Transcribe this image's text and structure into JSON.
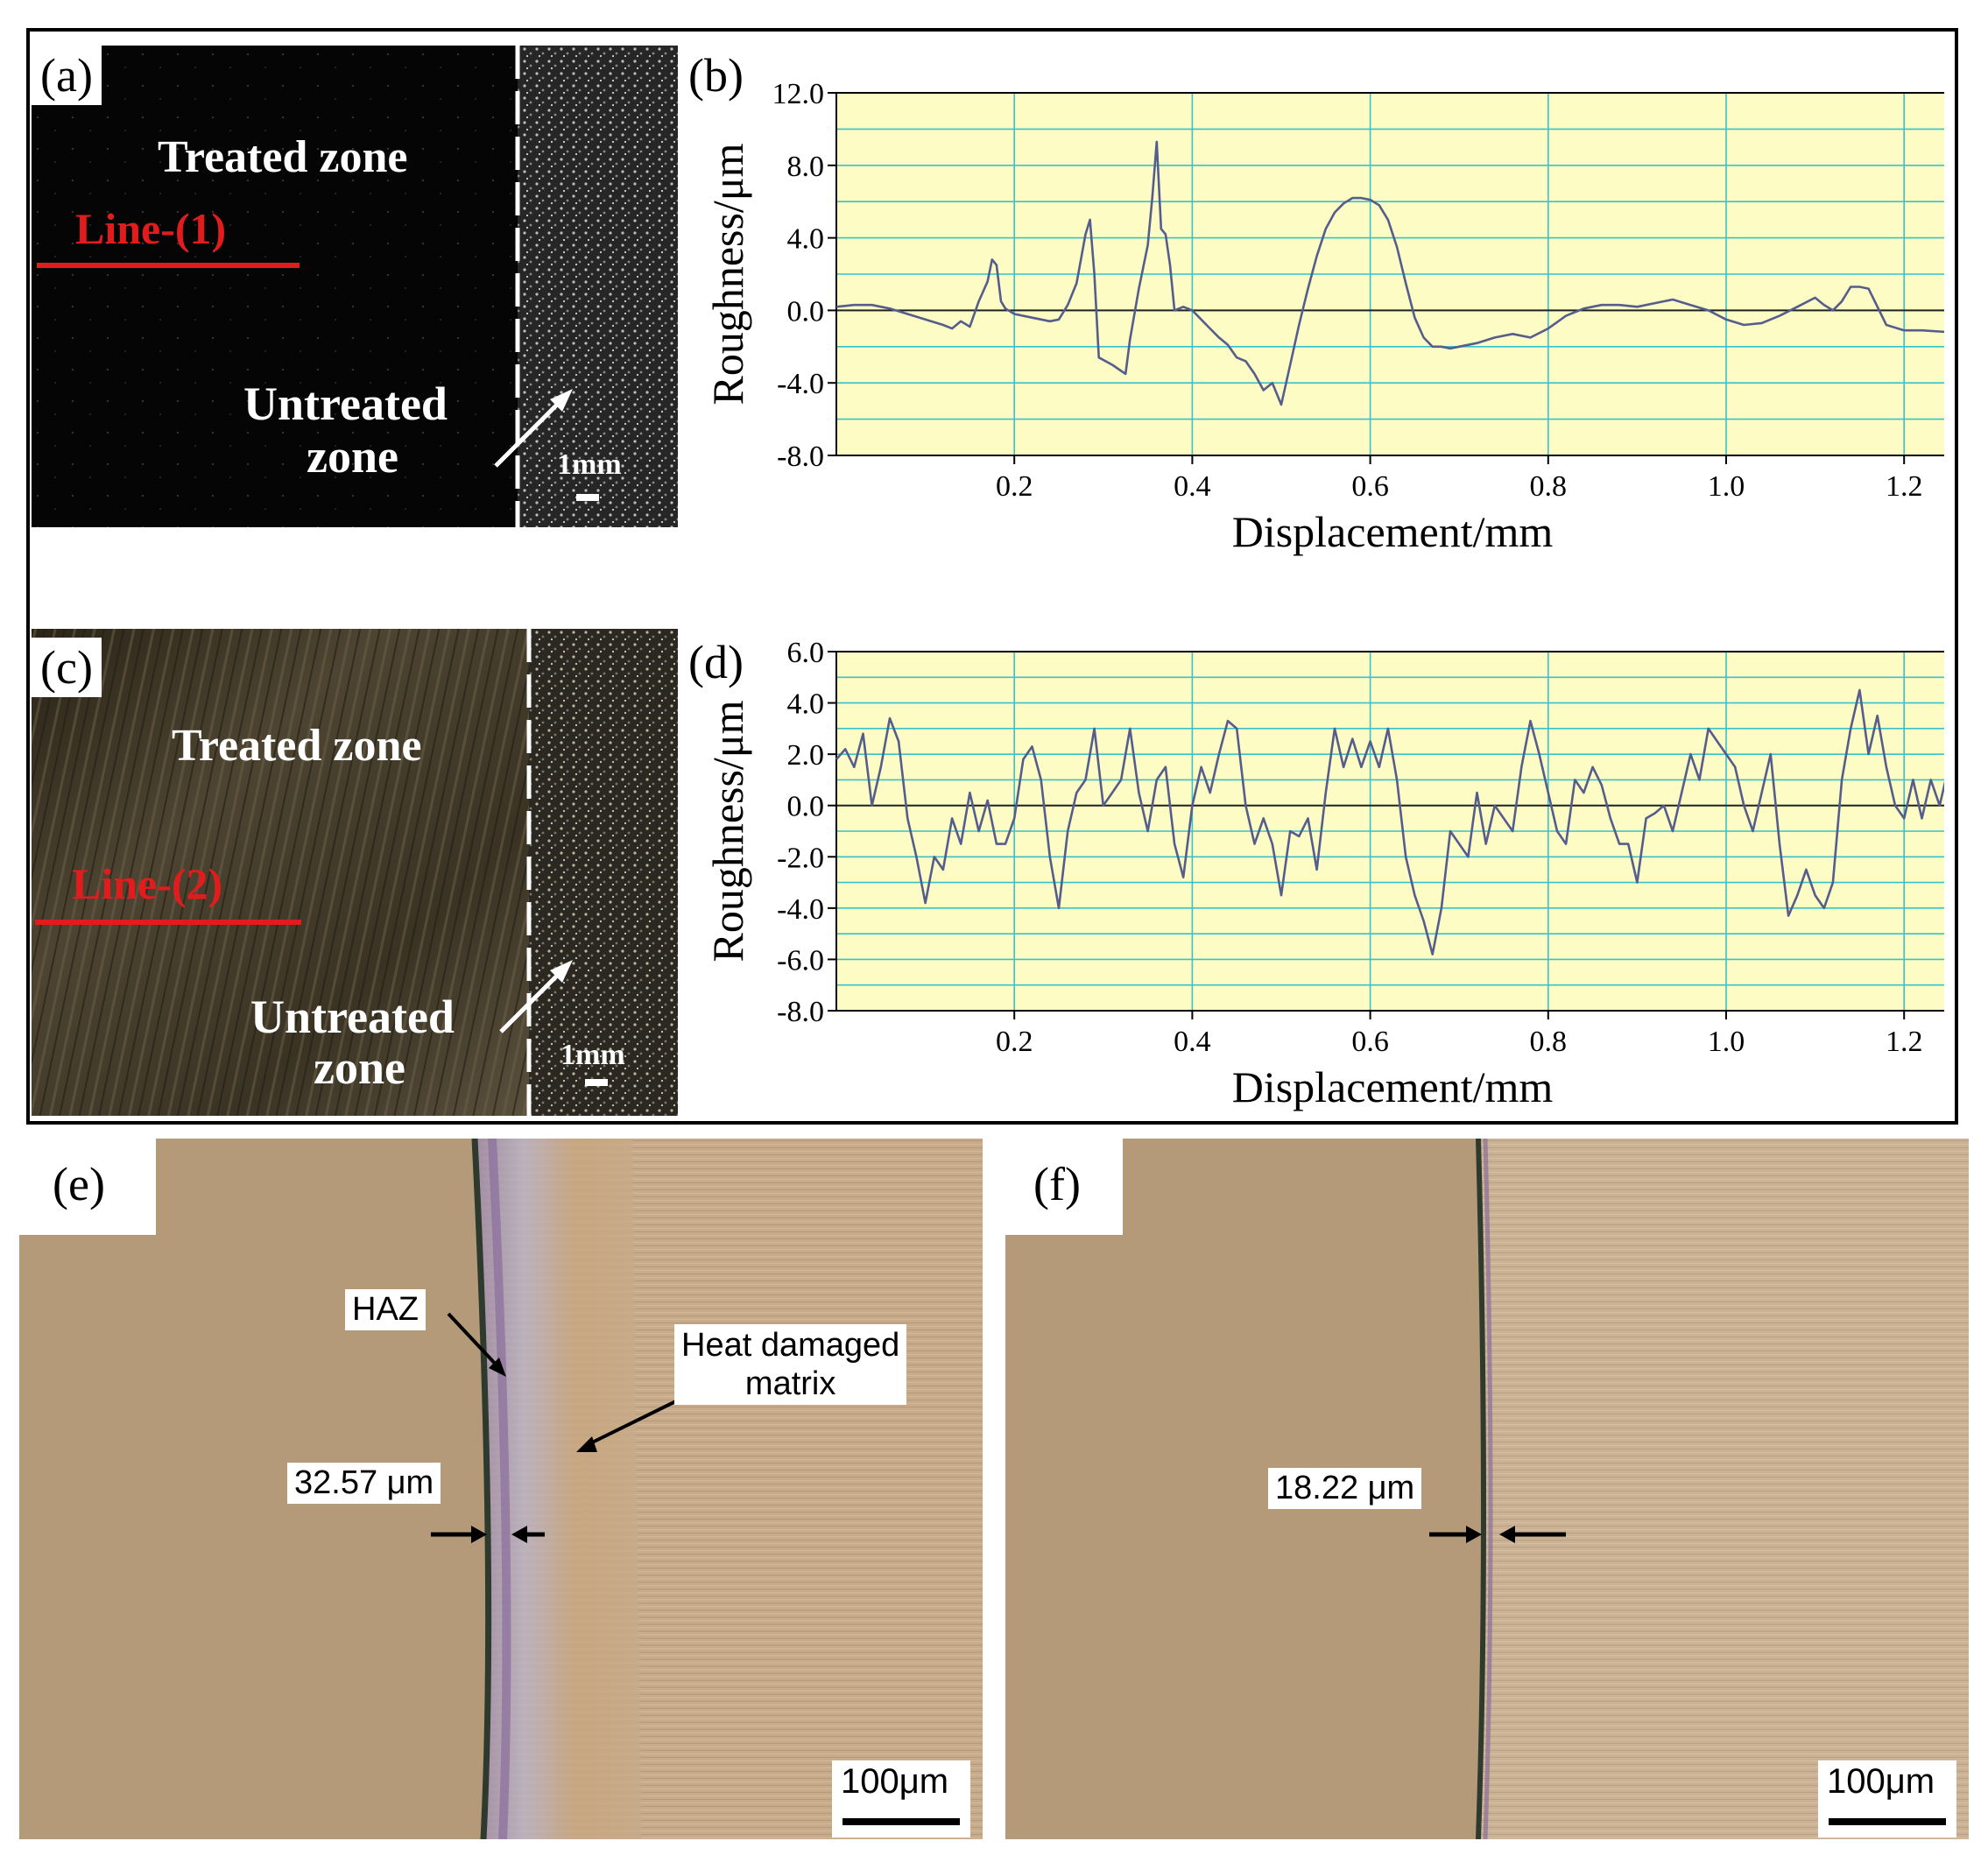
{
  "panels": {
    "a": {
      "label": "(a)",
      "treated_zone": "Treated zone",
      "line_label": "Line-(1)",
      "untreated_zone_line1": "Untreated",
      "untreated_zone_line2": "zone",
      "scale_bar": "1mm"
    },
    "c": {
      "label": "(c)",
      "treated_zone": "Treated zone",
      "line_label": "Line-(2)",
      "untreated_zone_line1": "Untreated",
      "untreated_zone_line2": "zone",
      "scale_bar": "1mm"
    },
    "e": {
      "label": "(e)",
      "haz_label": "HAZ",
      "matrix_label_line1": "Heat damaged",
      "matrix_label_line2": "matrix",
      "thickness": "32.57 μm",
      "scale_bar": "100μm"
    },
    "f": {
      "label": "(f)",
      "thickness": "18.22 μm",
      "scale_bar": "100μm"
    }
  },
  "colors": {
    "plot_background": "#fdfcc4",
    "grid": "#39c2c9",
    "trace": "#545d8c",
    "line_marker": "#e21c1c",
    "micro_left": "#b49a78",
    "micro_right": "#c8ad8c"
  },
  "chart_data": [
    {
      "panel_label": "(b)",
      "type": "line",
      "xlabel": "Displacement/mm",
      "ylabel": "Roughness/μm",
      "xlim": [
        0.0,
        1.25
      ],
      "ylim": [
        -8.0,
        12.0
      ],
      "x_ticks": [
        0.2,
        0.4,
        0.6,
        0.8,
        1.0,
        1.2
      ],
      "x_tick_labels": [
        "0.2",
        "0.4",
        "0.6",
        "0.8",
        "1.0",
        "1.2"
      ],
      "y_ticks": [
        -8,
        -4,
        0,
        4,
        8,
        12
      ],
      "y_tick_labels": [
        "-8.0",
        "-4.0",
        "0.0",
        "4.0",
        "8.0",
        "12.0"
      ],
      "grid": true,
      "x": [
        0.0,
        0.02,
        0.04,
        0.06,
        0.08,
        0.1,
        0.12,
        0.13,
        0.14,
        0.15,
        0.16,
        0.17,
        0.175,
        0.18,
        0.185,
        0.19,
        0.2,
        0.22,
        0.24,
        0.25,
        0.26,
        0.27,
        0.28,
        0.285,
        0.29,
        0.295,
        0.31,
        0.325,
        0.33,
        0.34,
        0.35,
        0.355,
        0.36,
        0.365,
        0.37,
        0.375,
        0.38,
        0.39,
        0.4,
        0.41,
        0.42,
        0.43,
        0.44,
        0.45,
        0.46,
        0.47,
        0.48,
        0.49,
        0.5,
        0.51,
        0.52,
        0.53,
        0.54,
        0.55,
        0.56,
        0.57,
        0.58,
        0.59,
        0.6,
        0.61,
        0.62,
        0.63,
        0.64,
        0.65,
        0.66,
        0.67,
        0.68,
        0.69,
        0.7,
        0.72,
        0.74,
        0.76,
        0.78,
        0.8,
        0.82,
        0.84,
        0.86,
        0.88,
        0.9,
        0.92,
        0.94,
        0.96,
        0.98,
        1.0,
        1.02,
        1.04,
        1.06,
        1.08,
        1.1,
        1.11,
        1.12,
        1.13,
        1.14,
        1.15,
        1.16,
        1.18,
        1.2,
        1.22,
        1.25
      ],
      "values": [
        0.2,
        0.3,
        0.3,
        0.1,
        -0.2,
        -0.5,
        -0.8,
        -1.0,
        -0.6,
        -0.9,
        0.5,
        1.6,
        2.8,
        2.5,
        0.5,
        0.1,
        -0.2,
        -0.4,
        -0.6,
        -0.5,
        0.3,
        1.5,
        4.2,
        5.0,
        2.0,
        -2.6,
        -3.0,
        -3.5,
        -1.6,
        1.2,
        3.6,
        6.2,
        9.3,
        4.5,
        4.2,
        2.5,
        0.0,
        0.2,
        0.0,
        -0.5,
        -1.0,
        -1.5,
        -1.9,
        -2.6,
        -2.8,
        -3.5,
        -4.4,
        -4.0,
        -5.2,
        -3.0,
        -0.8,
        1.2,
        3.0,
        4.5,
        5.4,
        5.9,
        6.2,
        6.2,
        6.1,
        5.8,
        5.0,
        3.5,
        1.5,
        -0.4,
        -1.5,
        -2.0,
        -2.0,
        -2.1,
        -2.0,
        -1.8,
        -1.5,
        -1.3,
        -1.5,
        -1.0,
        -0.3,
        0.1,
        0.3,
        0.3,
        0.2,
        0.4,
        0.6,
        0.3,
        0.0,
        -0.5,
        -0.8,
        -0.7,
        -0.3,
        0.2,
        0.7,
        0.3,
        0.0,
        0.5,
        1.3,
        1.3,
        1.2,
        -0.8,
        -1.1,
        -1.1,
        -1.2
      ]
    },
    {
      "panel_label": "(d)",
      "type": "line",
      "xlabel": "Displacement/mm",
      "ylabel": "Roughness/μm",
      "xlim": [
        0.0,
        1.25
      ],
      "ylim": [
        -8.0,
        6.0
      ],
      "x_ticks": [
        0.2,
        0.4,
        0.6,
        0.8,
        1.0,
        1.2
      ],
      "x_tick_labels": [
        "0.2",
        "0.4",
        "0.6",
        "0.8",
        "1.0",
        "1.2"
      ],
      "y_ticks": [
        -8,
        -6,
        -4,
        -2,
        0,
        2,
        4,
        6
      ],
      "y_tick_labels": [
        "-8.0",
        "-6.0",
        "-4.0",
        "-2.0",
        "0.0",
        "2.0",
        "4.0",
        "6.0"
      ],
      "grid": true,
      "x": [
        0.0,
        0.01,
        0.02,
        0.03,
        0.04,
        0.05,
        0.06,
        0.07,
        0.08,
        0.09,
        0.1,
        0.11,
        0.12,
        0.13,
        0.14,
        0.15,
        0.16,
        0.17,
        0.18,
        0.19,
        0.2,
        0.21,
        0.22,
        0.23,
        0.24,
        0.25,
        0.26,
        0.27,
        0.28,
        0.29,
        0.3,
        0.31,
        0.32,
        0.33,
        0.34,
        0.35,
        0.36,
        0.37,
        0.38,
        0.39,
        0.4,
        0.41,
        0.42,
        0.43,
        0.44,
        0.45,
        0.46,
        0.47,
        0.48,
        0.49,
        0.5,
        0.51,
        0.52,
        0.53,
        0.54,
        0.55,
        0.56,
        0.57,
        0.58,
        0.59,
        0.6,
        0.61,
        0.62,
        0.63,
        0.64,
        0.65,
        0.66,
        0.67,
        0.68,
        0.69,
        0.7,
        0.71,
        0.72,
        0.73,
        0.74,
        0.75,
        0.76,
        0.77,
        0.78,
        0.79,
        0.8,
        0.81,
        0.82,
        0.83,
        0.84,
        0.85,
        0.86,
        0.87,
        0.88,
        0.89,
        0.9,
        0.91,
        0.92,
        0.93,
        0.94,
        0.95,
        0.96,
        0.97,
        0.98,
        0.99,
        1.0,
        1.01,
        1.02,
        1.03,
        1.04,
        1.05,
        1.06,
        1.07,
        1.08,
        1.09,
        1.1,
        1.11,
        1.12,
        1.13,
        1.14,
        1.15,
        1.16,
        1.17,
        1.18,
        1.19,
        1.2,
        1.21,
        1.22,
        1.23,
        1.24,
        1.25
      ],
      "values": [
        1.8,
        2.2,
        1.5,
        2.8,
        0.0,
        1.5,
        3.4,
        2.5,
        -0.5,
        -2.0,
        -3.8,
        -2.0,
        -2.5,
        -0.5,
        -1.5,
        0.5,
        -1.0,
        0.2,
        -1.5,
        -1.5,
        -0.5,
        1.8,
        2.3,
        1.0,
        -2.0,
        -4.0,
        -1.0,
        0.5,
        1.0,
        3.0,
        0.0,
        0.5,
        1.0,
        3.0,
        0.5,
        -1.0,
        1.0,
        1.5,
        -1.5,
        -2.8,
        0.0,
        1.5,
        0.5,
        2.0,
        3.3,
        3.0,
        0.0,
        -1.5,
        -0.5,
        -1.5,
        -3.5,
        -1.0,
        -1.2,
        -0.5,
        -2.5,
        0.5,
        3.0,
        1.5,
        2.6,
        1.5,
        2.5,
        1.5,
        3.0,
        1.0,
        -2.0,
        -3.5,
        -4.5,
        -5.8,
        -4.0,
        -1.0,
        -1.5,
        -2.0,
        0.5,
        -1.5,
        0.0,
        -0.5,
        -1.0,
        1.5,
        3.3,
        2.0,
        0.5,
        -1.0,
        -1.5,
        1.0,
        0.5,
        1.5,
        0.8,
        -0.5,
        -1.5,
        -1.5,
        -3.0,
        -0.5,
        -0.3,
        0.0,
        -1.0,
        0.5,
        2.0,
        1.0,
        3.0,
        2.5,
        2.0,
        1.5,
        0.0,
        -1.0,
        0.5,
        2.0,
        -1.5,
        -4.3,
        -3.5,
        -2.5,
        -3.5,
        -4.0,
        -3.0,
        1.0,
        3.0,
        4.5,
        2.0,
        3.5,
        1.5,
        0.0,
        -0.5,
        1.0,
        -0.5,
        1.0,
        0.0,
        1.5
      ]
    }
  ]
}
